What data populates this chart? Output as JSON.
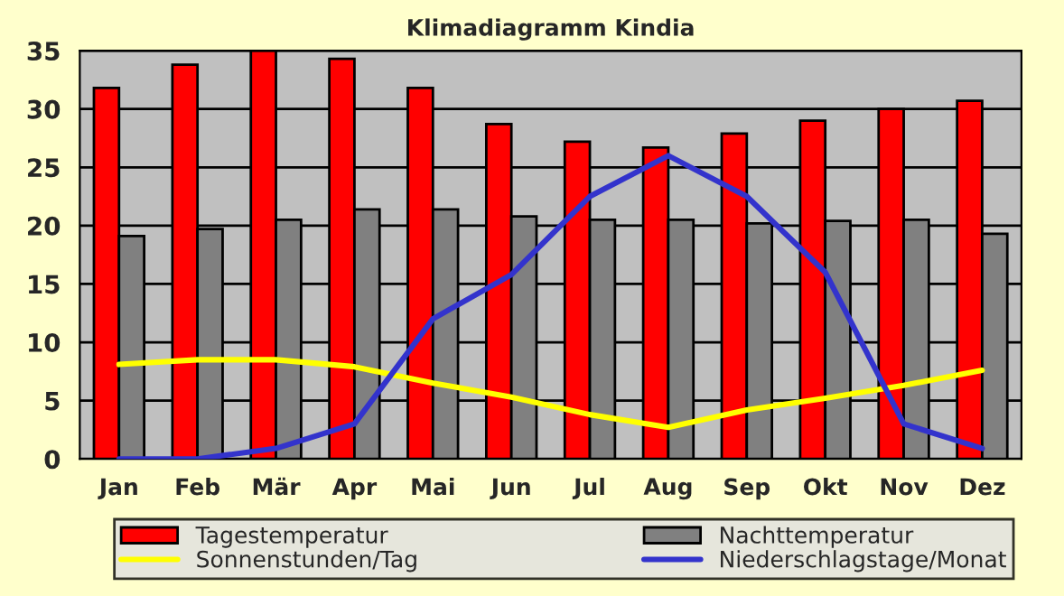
{
  "chart_data": {
    "type": "bar",
    "title": "Klimadiagramm Kindia",
    "categories": [
      "Jan",
      "Feb",
      "Mär",
      "Apr",
      "Mai",
      "Jun",
      "Jul",
      "Aug",
      "Sep",
      "Okt",
      "Nov",
      "Dez"
    ],
    "series": [
      {
        "name": "Tagestemperatur",
        "color": "#ff0000",
        "values": [
          31.8,
          33.8,
          35,
          34.3,
          31.8,
          28.7,
          27.2,
          26.7,
          27.9,
          29,
          30,
          30.7
        ]
      },
      {
        "name": "Nachttemperatur",
        "color": "#808080",
        "values": [
          19.1,
          19.7,
          20.5,
          21.4,
          21.4,
          20.8,
          20.5,
          20.5,
          20.2,
          20.4,
          20.5,
          19.3
        ]
      },
      {
        "name": "Sonnenstunden/Tag",
        "color": "#ffff00",
        "type": "line",
        "values": [
          8.1,
          8.5,
          8.5,
          7.9,
          6.5,
          5.3,
          3.8,
          2.7,
          4.2,
          5.2,
          6.3,
          7.6
        ]
      },
      {
        "name": "Niederschlagstage/Monat",
        "color": "#3333cc",
        "type": "line",
        "values": [
          0,
          0,
          0.9,
          3,
          12,
          15.8,
          22.5,
          26,
          22.5,
          16,
          3,
          0.9
        ]
      }
    ],
    "ylim": [
      0,
      35
    ],
    "yticks": [
      0,
      5,
      10,
      15,
      20,
      25,
      30,
      35
    ],
    "grid": "y",
    "legend": "bottom",
    "marker": "none"
  }
}
